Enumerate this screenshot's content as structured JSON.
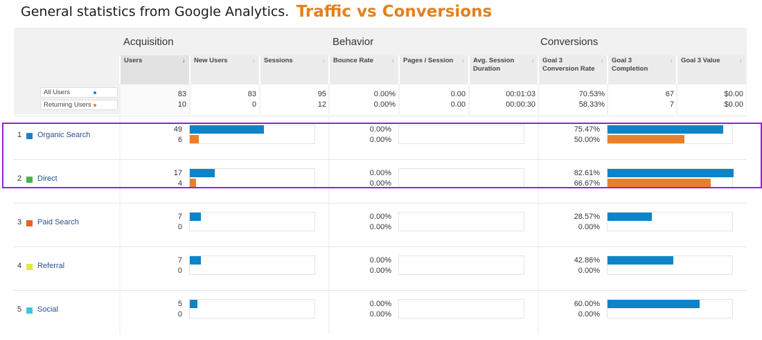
{
  "headline": {
    "intro": "General statistics from Google Analytics.",
    "accent": "Traffic vs Conversions",
    "accent_color": "#e0811f"
  },
  "groups": {
    "acquisition": "Acquisition",
    "behavior": "Behavior",
    "conversions": "Conversions"
  },
  "columns": [
    {
      "label": "Users",
      "sorted": true,
      "sort_icon": "arrow-down-icon"
    },
    {
      "label": "New Users",
      "sorted": false,
      "sort_icon": "sort-icon"
    },
    {
      "label": "Sessions",
      "sorted": false,
      "sort_icon": "sort-icon"
    },
    {
      "label": "Bounce Rate",
      "sorted": false,
      "sort_icon": "sort-icon"
    },
    {
      "label": "Pages / Session",
      "sorted": false,
      "sort_icon": "sort-icon"
    },
    {
      "label": "Avg. Session Duration",
      "sorted": false,
      "sort_icon": "sort-icon"
    },
    {
      "label": "Goal 3 Conversion Rate",
      "sorted": false,
      "sort_icon": "sort-icon"
    },
    {
      "label": "Goal 3 Completion",
      "sorted": false,
      "sort_icon": "sort-icon"
    },
    {
      "label": "Goal 3 Value",
      "sorted": false,
      "sort_icon": "sort-icon"
    }
  ],
  "segments": [
    {
      "label": "All Users",
      "color": "#0d84c8"
    },
    {
      "label": "Returning Users",
      "color": "#e8802b"
    }
  ],
  "summary": {
    "users": [
      "83",
      "10"
    ],
    "new_users": [
      "83",
      "0"
    ],
    "sessions": [
      "95",
      "12"
    ],
    "bounce_rate": [
      "0.00%",
      "0.00%"
    ],
    "pages_session": [
      "0.00",
      "0.00"
    ],
    "avg_duration": [
      "00:01:03",
      "00:00:30"
    ],
    "conv_rate": [
      "70.53%",
      "58.33%"
    ],
    "completion": [
      "67",
      "7"
    ],
    "value": [
      "$0.00",
      "$0.00"
    ]
  },
  "channels": [
    {
      "index": "1",
      "name": "Organic Search",
      "color": "#1f7fc2",
      "users": [
        "49",
        "6"
      ],
      "bounce": [
        "0.00%",
        "0.00%"
      ],
      "conv": [
        "75.47%",
        "50.00%"
      ],
      "users_bar": [
        0.59,
        0.07
      ],
      "conv_bar": [
        0.92,
        0.61
      ]
    },
    {
      "index": "2",
      "name": "Direct",
      "color": "#4caf50",
      "users": [
        "17",
        "4"
      ],
      "bounce": [
        "0.00%",
        "0.00%"
      ],
      "conv": [
        "82.61%",
        "66.67%"
      ],
      "users_bar": [
        0.2,
        0.05
      ],
      "conv_bar": [
        1.0,
        0.82
      ]
    },
    {
      "index": "3",
      "name": "Paid Search",
      "color": "#e8602b",
      "users": [
        "7",
        "0"
      ],
      "bounce": [
        "0.00%",
        "0.00%"
      ],
      "conv": [
        "28.57%",
        "0.00%"
      ],
      "users_bar": [
        0.09,
        0
      ],
      "conv_bar": [
        0.35,
        0
      ]
    },
    {
      "index": "4",
      "name": "Referral",
      "color": "#e6e63c",
      "users": [
        "7",
        "0"
      ],
      "bounce": [
        "0.00%",
        "0.00%"
      ],
      "conv": [
        "42.86%",
        "0.00%"
      ],
      "users_bar": [
        0.09,
        0
      ],
      "conv_bar": [
        0.52,
        0
      ]
    },
    {
      "index": "5",
      "name": "Social",
      "color": "#3ec6e0",
      "users": [
        "5",
        "0"
      ],
      "bounce": [
        "0.00%",
        "0.00%"
      ],
      "conv": [
        "60.00%",
        "0.00%"
      ],
      "users_bar": [
        0.06,
        0
      ],
      "conv_bar": [
        0.73,
        0
      ]
    }
  ],
  "bar_colors": {
    "primary": "#0d84c8",
    "secondary": "#e8802b"
  },
  "highlight_color": "#9b1bd9"
}
